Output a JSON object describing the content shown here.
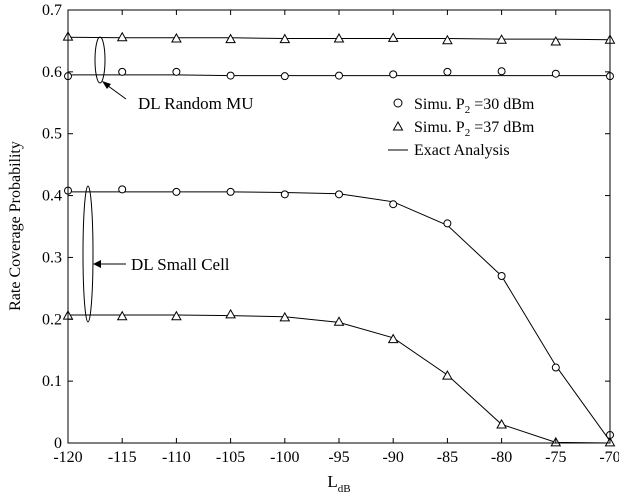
{
  "chart_data": {
    "type": "line",
    "xlabel_main": "L",
    "xlabel_sub": "dB",
    "ylabel": "Rate Coverage Probability",
    "xlim": [
      -120,
      -70
    ],
    "ylim": [
      0,
      0.7
    ],
    "xticks": [
      -120,
      -115,
      -110,
      -105,
      -100,
      -95,
      -90,
      -85,
      -80,
      -75,
      -70
    ],
    "yticks": [
      0,
      0.1,
      0.2,
      0.3,
      0.4,
      0.5,
      0.6,
      0.7
    ],
    "ytick_labels": [
      "0",
      "0.1",
      "0.2",
      "0.3",
      "0.4",
      "0.5",
      "0.6",
      "0.7"
    ],
    "grid": false,
    "legend_position": "right-middle",
    "legend": [
      {
        "marker": "circle",
        "prefix": "Simu. P",
        "sub": "2",
        "suffix": " =30 dBm"
      },
      {
        "marker": "triangle",
        "prefix": "Simu. P",
        "sub": "2",
        "suffix": " =37 dBm"
      },
      {
        "marker": "line",
        "prefix": "Exact Analysis",
        "sub": "",
        "suffix": ""
      }
    ],
    "annotations": [
      {
        "text": "DL Random MU",
        "group": "random_mu"
      },
      {
        "text": "DL Small Cell",
        "group": "small_cell"
      }
    ],
    "x": [
      -120,
      -115,
      -110,
      -105,
      -100,
      -95,
      -90,
      -85,
      -80,
      -75,
      -70
    ],
    "series": [
      {
        "group": "random_mu",
        "marker": "triangle",
        "simu": [
          0.657,
          0.656,
          0.654,
          0.653,
          0.653,
          0.654,
          0.655,
          0.651,
          0.652,
          0.649,
          0.652
        ],
        "exact": [
          0.656,
          0.655,
          0.655,
          0.655,
          0.654,
          0.654,
          0.654,
          0.654,
          0.653,
          0.653,
          0.652
        ]
      },
      {
        "group": "random_mu",
        "marker": "circle",
        "simu": [
          0.593,
          0.6,
          0.6,
          0.594,
          0.593,
          0.594,
          0.596,
          0.6,
          0.601,
          0.597,
          0.593
        ],
        "exact": [
          0.595,
          0.595,
          0.595,
          0.594,
          0.594,
          0.594,
          0.594,
          0.594,
          0.594,
          0.594,
          0.594
        ]
      },
      {
        "group": "small_cell",
        "marker": "circle",
        "simu": [
          0.408,
          0.41,
          0.406,
          0.406,
          0.402,
          0.402,
          0.386,
          0.355,
          0.27,
          0.122,
          0.013
        ],
        "exact": [
          0.406,
          0.406,
          0.406,
          0.406,
          0.405,
          0.403,
          0.39,
          0.352,
          0.27,
          0.125,
          0.003
        ]
      },
      {
        "group": "small_cell",
        "marker": "triangle",
        "simu": [
          0.206,
          0.205,
          0.205,
          0.208,
          0.203,
          0.196,
          0.168,
          0.109,
          0.03,
          0.001,
          0.001
        ],
        "exact": [
          0.207,
          0.207,
          0.207,
          0.206,
          0.204,
          0.195,
          0.17,
          0.11,
          0.03,
          0.001,
          0.0
        ]
      }
    ]
  }
}
